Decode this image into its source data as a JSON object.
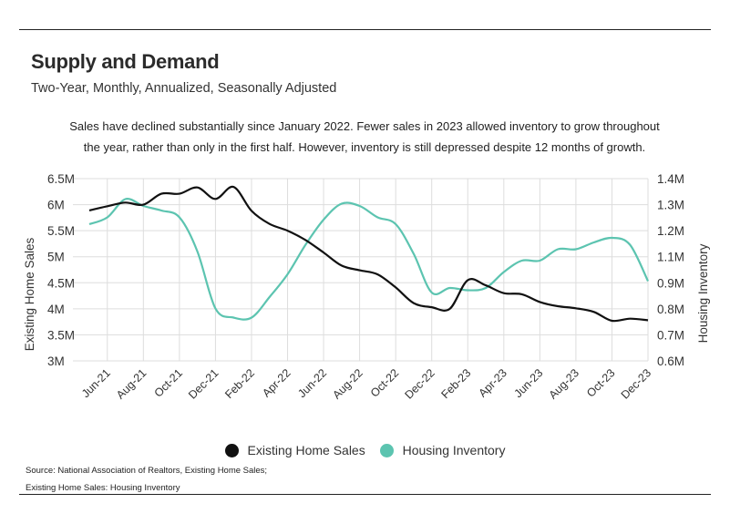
{
  "header": {
    "title": "Supply and Demand",
    "subtitle": "Two-Year, Monthly, Annualized, Seasonally Adjusted",
    "description_line1": "Sales have declined substantially since January 2022. Fewer sales in 2023 allowed inventory to grow throughout",
    "description_line2": "the year, rather than only in the first half. However, inventory is still depressed despite 12 months of growth."
  },
  "footer": {
    "source_line1": "Source:  National Association of Realtors, Existing Home Sales;",
    "source_line2": "Existing Home Sales: Housing Inventory"
  },
  "colors": {
    "sales": "#111111",
    "inventory": "#5cc4b0",
    "grid": "#dddddd"
  },
  "chart_data": {
    "type": "line",
    "x": [
      "May-21",
      "Jun-21",
      "Jul-21",
      "Aug-21",
      "Sep-21",
      "Oct-21",
      "Nov-21",
      "Dec-21",
      "Jan-22",
      "Feb-22",
      "Mar-22",
      "Apr-22",
      "May-22",
      "Jun-22",
      "Jul-22",
      "Aug-22",
      "Sep-22",
      "Oct-22",
      "Nov-22",
      "Dec-22",
      "Jan-23",
      "Feb-23",
      "Mar-23",
      "Apr-23",
      "May-23",
      "Jun-23",
      "Jul-23",
      "Aug-23",
      "Sep-23",
      "Oct-23",
      "Nov-23",
      "Dec-23"
    ],
    "x_tick_labels": [
      "Jun-21",
      "Aug-21",
      "Oct-21",
      "Dec-21",
      "Feb-22",
      "Apr-22",
      "Jun-22",
      "Aug-22",
      "Oct-22",
      "Dec-22",
      "Feb-23",
      "Apr-23",
      "Jun-23",
      "Aug-23",
      "Oct-23",
      "Dec-23"
    ],
    "x_tick_indices": [
      1,
      3,
      5,
      7,
      9,
      11,
      13,
      15,
      17,
      19,
      21,
      23,
      25,
      27,
      29,
      31
    ],
    "ylabel_left": "Existing Home Sales",
    "ylabel_right": "Housing Inventory",
    "y_left_lim": [
      3000000,
      6500000
    ],
    "y_right_lim": [
      600000,
      1400000
    ],
    "y_left_ticks": [
      "3M",
      "3.5M",
      "4M",
      "4.5M",
      "5M",
      "5.5M",
      "6M",
      "6.5M"
    ],
    "y_right_ticks": [
      "0.6M",
      "0.7M",
      "0.8M",
      "0.9M",
      "1.1M",
      "1.2M",
      "1.3M",
      "1.4M"
    ],
    "grid": true,
    "legend_position": "bottom",
    "series": [
      {
        "name": "Existing Home Sales",
        "axis": "left",
        "values": [
          5890000,
          5970000,
          6040000,
          6000000,
          6210000,
          6210000,
          6330000,
          6110000,
          6340000,
          5880000,
          5630000,
          5500000,
          5320000,
          5080000,
          4830000,
          4740000,
          4660000,
          4410000,
          4110000,
          4030000,
          4000000,
          4550000,
          4450000,
          4300000,
          4280000,
          4130000,
          4050000,
          4010000,
          3940000,
          3770000,
          3810000,
          3780000
        ]
      },
      {
        "name": "Housing Inventory",
        "axis": "right",
        "values": [
          1200000,
          1230000,
          1310000,
          1280000,
          1260000,
          1230000,
          1080000,
          830000,
          790000,
          790000,
          880000,
          980000,
          1110000,
          1220000,
          1290000,
          1280000,
          1230000,
          1200000,
          1070000,
          900000,
          920000,
          910000,
          920000,
          990000,
          1040000,
          1040000,
          1090000,
          1090000,
          1120000,
          1140000,
          1110000,
          950000
        ]
      }
    ]
  }
}
